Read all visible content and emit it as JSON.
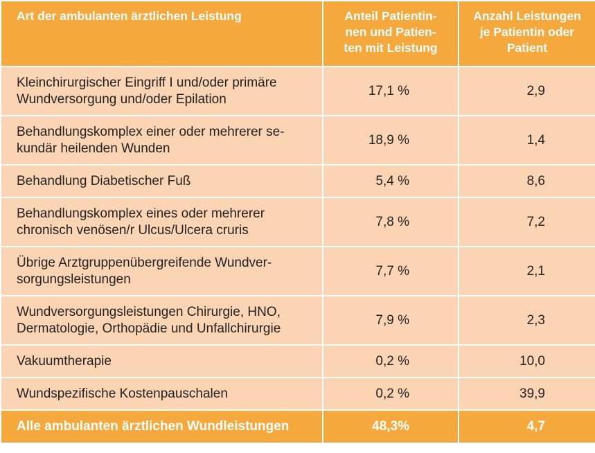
{
  "header": {
    "col1": "Art der ambulanten ärztlichen Leistung",
    "col2_lines": [
      "Anteil Patientin-",
      "nen und Patien-",
      "ten mit Leistung"
    ],
    "col3_lines": [
      "Anzahl Leistungen",
      "je Patientin oder",
      "Patient"
    ]
  },
  "rows": [
    {
      "label_lines": [
        "Kleinchirurgischer Eingriff I und/oder primäre",
        "Wundversorgung und/oder Epilation"
      ],
      "share": "17,1 %",
      "count": "2,9"
    },
    {
      "label_lines": [
        "Behandlungskomplex einer oder mehrerer se-",
        "kundär heilenden Wunden"
      ],
      "share": "18,9 %",
      "count": "1,4"
    },
    {
      "label_lines": [
        "Behandlung Diabetischer Fuß"
      ],
      "share": "5,4 %",
      "count": "8,6"
    },
    {
      "label_lines": [
        "Behandlungskomplex eines oder mehrerer",
        "chronisch venösen/r Ulcus/Ulcera cruris"
      ],
      "share": "7,8 %",
      "count": "7,2"
    },
    {
      "label_lines": [
        "Übrige Arztgruppenübergreifende Wundver-",
        "sorgungsleistungen"
      ],
      "share": "7,7 %",
      "count": "2,1"
    },
    {
      "label_lines": [
        "Wundversorgungsleistungen Chirurgie, HNO,",
        "Dermatologie, Orthopädie und Unfallchirurgie"
      ],
      "share": "7,9 %",
      "count": "2,3"
    },
    {
      "label_lines": [
        "Vakuumtherapie"
      ],
      "share": "0,2 %",
      "count": "10,0"
    },
    {
      "label_lines": [
        "Wundspezifische Kostenpauschalen"
      ],
      "share": "0,2 %",
      "count": "39,9"
    }
  ],
  "total": {
    "label": "Alle ambulanten ärztlichen Wundleistungen",
    "share": "48,3%",
    "count": "4,7"
  },
  "colors": {
    "header_bg": "#f5a93d",
    "row_bg": "#fbd4b4",
    "header_text": "#ffffff"
  }
}
